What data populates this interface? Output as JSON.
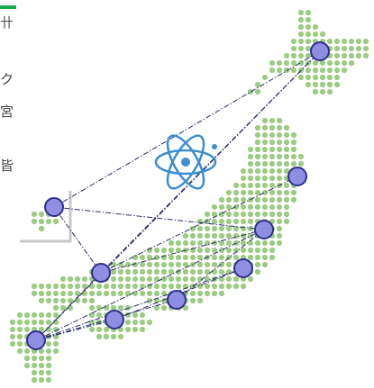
{
  "edge_glyphs": [
    "卄",
    "ク",
    "宮",
    "皆"
  ],
  "colors": {
    "land_dots": "#9ccc84",
    "node_fill": "#8f8ee3",
    "node_stroke": "#2f2f8c",
    "network_line": "#2a2a6e",
    "atom": "#3c8ed0",
    "accent_bar": "#1aa84a",
    "frame_lines": "#c8c8c8"
  },
  "icons": [
    "atom-icon"
  ],
  "network": {
    "node_count": 9,
    "line_style": "dash-dot"
  }
}
